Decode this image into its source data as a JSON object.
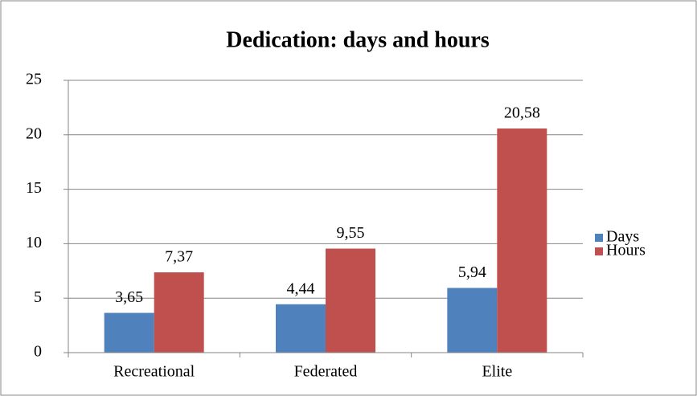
{
  "chart_data": {
    "type": "bar",
    "title": "Dedication: days and hours",
    "categories": [
      "Recreational",
      "Federated",
      "Elite"
    ],
    "series": [
      {
        "name": "Days",
        "color": "#4f81bd",
        "values": [
          3.65,
          4.44,
          5.94
        ],
        "value_labels": [
          "3,65",
          "4,44",
          "5,94"
        ]
      },
      {
        "name": "Hours",
        "color": "#c0504d",
        "values": [
          7.37,
          9.55,
          20.58
        ],
        "value_labels": [
          "7,37",
          "9,55",
          "20,58"
        ]
      }
    ],
    "ylim": [
      0,
      25
    ],
    "yticks": [
      0,
      5,
      10,
      15,
      20,
      25
    ],
    "grid": true,
    "legend": "right"
  }
}
